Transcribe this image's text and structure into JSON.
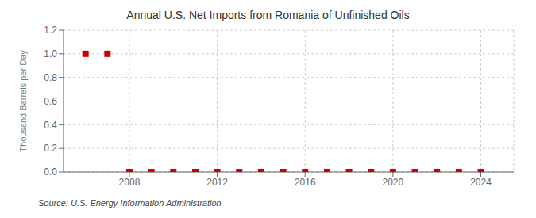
{
  "chart_data": {
    "type": "scatter",
    "title": "Annual U.S. Net Imports from Romania of Unfinished Oils",
    "y_label": "Thousand Barrels per Day",
    "source": "Source: U.S. Energy Information Administration",
    "x": [
      2006,
      2007,
      2008,
      2009,
      2010,
      2011,
      2012,
      2013,
      2014,
      2015,
      2016,
      2017,
      2018,
      2019,
      2020,
      2021,
      2022,
      2023,
      2024
    ],
    "values": [
      1.0,
      1.0,
      0.0,
      0.0,
      0.0,
      0.0,
      0.0,
      0.0,
      0.0,
      0.0,
      0.0,
      0.0,
      0.0,
      0.0,
      0.0,
      0.0,
      0.0,
      0.0,
      0.0
    ],
    "xlim": [
      2005.0,
      2025.5
    ],
    "ylim": [
      0.0,
      1.2
    ],
    "xticks": [
      2008,
      2012,
      2016,
      2020,
      2024
    ],
    "yticks": [
      {
        "value": 0.0,
        "label": "0.0"
      },
      {
        "value": 0.2,
        "label": "0.2"
      },
      {
        "value": 0.4,
        "label": "0.4"
      },
      {
        "value": 0.6,
        "label": "0.6"
      },
      {
        "value": 0.8,
        "label": "0.8"
      },
      {
        "value": 1.0,
        "label": "1.0"
      },
      {
        "value": 1.2,
        "label": "1.2"
      }
    ],
    "color": "#cc0000",
    "marker": "square",
    "grid": true
  }
}
